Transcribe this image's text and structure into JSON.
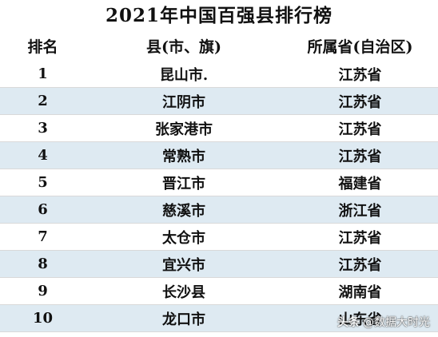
{
  "title": "2021年中国百强县排行榜",
  "columns": {
    "rank": "排名",
    "county": "县(市、旗)",
    "province": "所属省(自治区)"
  },
  "rows": [
    {
      "rank": "1",
      "county": "昆山市.",
      "province": "江苏省"
    },
    {
      "rank": "2",
      "county": "江阴市",
      "province": "江苏省"
    },
    {
      "rank": "3",
      "county": "张家港市",
      "province": "江苏省"
    },
    {
      "rank": "4",
      "county": "常熟市",
      "province": "江苏省"
    },
    {
      "rank": "5",
      "county": "晋江市",
      "province": "福建省"
    },
    {
      "rank": "6",
      "county": "慈溪市",
      "province": "浙江省"
    },
    {
      "rank": "7",
      "county": "太仓市",
      "province": "江苏省"
    },
    {
      "rank": "8",
      "county": "宜兴市",
      "province": "江苏省"
    },
    {
      "rank": "9",
      "county": "长沙县",
      "province": "湖南省"
    },
    {
      "rank": "10",
      "county": "龙口市",
      "province": "山东省"
    }
  ],
  "watermark": {
    "brand": "头条",
    "account": "@数据大时光"
  },
  "colors": {
    "stripe": "#deeaf2",
    "text": "#111111"
  }
}
